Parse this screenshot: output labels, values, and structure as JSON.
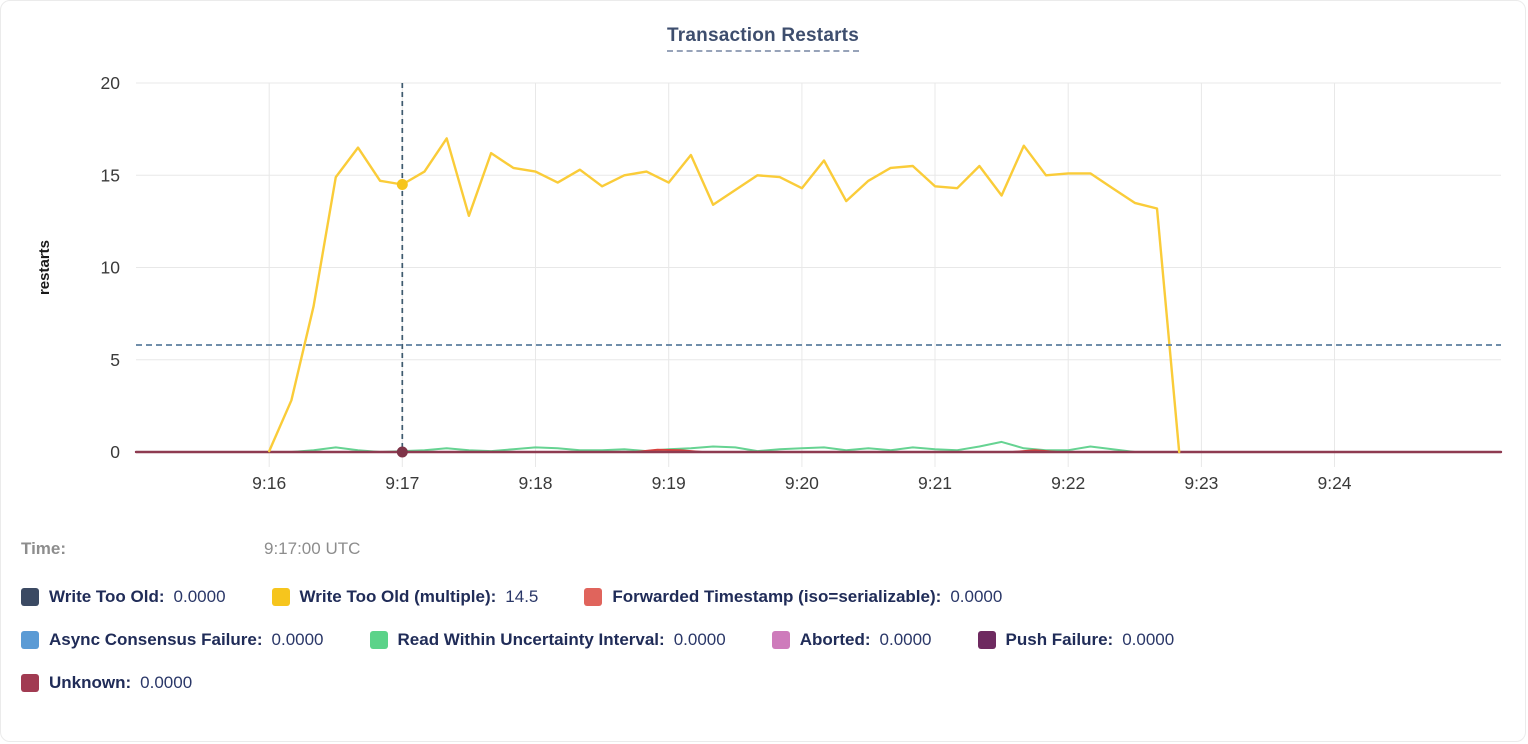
{
  "chart_data": {
    "type": "line",
    "title": "Transaction Restarts",
    "ylabel": "restarts",
    "xlabel": "",
    "ylim": [
      0,
      20
    ],
    "y_ticks": [
      0,
      5,
      10,
      15,
      20
    ],
    "x_ticks": [
      "9:16",
      "9:17",
      "9:18",
      "9:19",
      "9:20",
      "9:21",
      "9:22",
      "9:23",
      "9:24"
    ],
    "x_domain": [
      "9:15:00",
      "9:25:15"
    ],
    "grid": true,
    "legend_position": "bottom",
    "hover": {
      "time_label": "Time:",
      "time_value": "9:17:00 UTC",
      "time": "9:17:00",
      "crosshair_value": 5.8,
      "crosshair_color_v": "#3E5A6E",
      "crosshair_color_h": "#5C7F9E",
      "points": [
        {
          "series": "Write Too Old (multiple)",
          "value": 14.5,
          "color": "#F6C51D"
        },
        {
          "series": "Unknown",
          "value": 0,
          "color": "#7E3448"
        }
      ]
    },
    "draw_order": [
      0,
      3,
      5,
      6,
      4,
      2,
      7,
      1
    ],
    "series": [
      {
        "name": "Write Too Old",
        "color": "#3B4A63",
        "legend_value": "0.0000",
        "data": {
          "points": [
            [
              "9:15:00",
              0
            ],
            [
              "9:25:15",
              0
            ]
          ]
        }
      },
      {
        "name": "Write Too Old (multiple)",
        "color": "#F6C51D",
        "line_color": "#FACC39",
        "line_width": 2.4,
        "legend_value": "14.5",
        "data": {
          "start": "9:16:00",
          "step_seconds": 10,
          "values": [
            0.05,
            2.8,
            7.9,
            14.9,
            16.5,
            14.7,
            14.5,
            15.2,
            17.0,
            12.8,
            16.2,
            15.4,
            15.2,
            14.6,
            15.3,
            14.4,
            15.0,
            15.2,
            14.6,
            16.1,
            13.4,
            14.2,
            15.0,
            14.9,
            14.3,
            15.8,
            13.6,
            14.7,
            15.4,
            15.5,
            14.4,
            14.3,
            15.5,
            13.9,
            16.6,
            15.0,
            15.1,
            15.1,
            14.3,
            13.5,
            13.2,
            0.0
          ]
        }
      },
      {
        "name": "Forwarded Timestamp (iso=serializable)",
        "color": "#E0645C",
        "line_color": "#D9413D",
        "legend_value": "0.0000",
        "data": {
          "points": [
            [
              "9:15:00",
              0
            ],
            [
              "9:18:45",
              0
            ],
            [
              "9:18:55",
              0.12
            ],
            [
              "9:19:05",
              0.1
            ],
            [
              "9:19:15",
              0
            ],
            [
              "9:21:35",
              0
            ],
            [
              "9:21:45",
              0.1
            ],
            [
              "9:21:55",
              0
            ],
            [
              "9:25:15",
              0
            ]
          ]
        }
      },
      {
        "name": "Async Consensus Failure",
        "color": "#5B9BD5",
        "legend_value": "0.0000",
        "data": {
          "points": [
            [
              "9:15:00",
              0
            ],
            [
              "9:25:15",
              0
            ]
          ]
        }
      },
      {
        "name": "Read Within Uncertainty Interval",
        "color": "#5BD389",
        "line_color": "#66D392",
        "legend_value": "0.0000",
        "data": {
          "start": "9:16:00",
          "step_seconds": 10,
          "values": [
            0,
            0,
            0.1,
            0.25,
            0.1,
            0,
            0.05,
            0.1,
            0.2,
            0.1,
            0.05,
            0.15,
            0.25,
            0.2,
            0.1,
            0.1,
            0.15,
            0.05,
            0.15,
            0.2,
            0.3,
            0.25,
            0.05,
            0.15,
            0.2,
            0.25,
            0.1,
            0.2,
            0.1,
            0.25,
            0.15,
            0.1,
            0.3,
            0.55,
            0.2,
            0.1,
            0.1,
            0.3,
            0.15,
            0
          ]
        }
      },
      {
        "name": "Aborted",
        "color": "#CE7BBB",
        "legend_value": "0.0000",
        "data": {
          "points": [
            [
              "9:15:00",
              0
            ],
            [
              "9:25:15",
              0
            ]
          ]
        }
      },
      {
        "name": "Push Failure",
        "color": "#6E2A60",
        "legend_value": "0.0000",
        "data": {
          "points": [
            [
              "9:15:00",
              0
            ],
            [
              "9:25:15",
              0
            ]
          ]
        }
      },
      {
        "name": "Unknown",
        "color": "#A13B52",
        "line_color": "#8E3B51",
        "line_width": 2.4,
        "legend_value": "0.0000",
        "data": {
          "points": [
            [
              "9:15:00",
              0
            ],
            [
              "9:25:15",
              0
            ]
          ]
        }
      }
    ]
  },
  "legend": {
    "rows": [
      [
        0,
        1,
        2
      ],
      [
        3,
        4,
        5,
        6
      ],
      [
        7
      ]
    ]
  }
}
